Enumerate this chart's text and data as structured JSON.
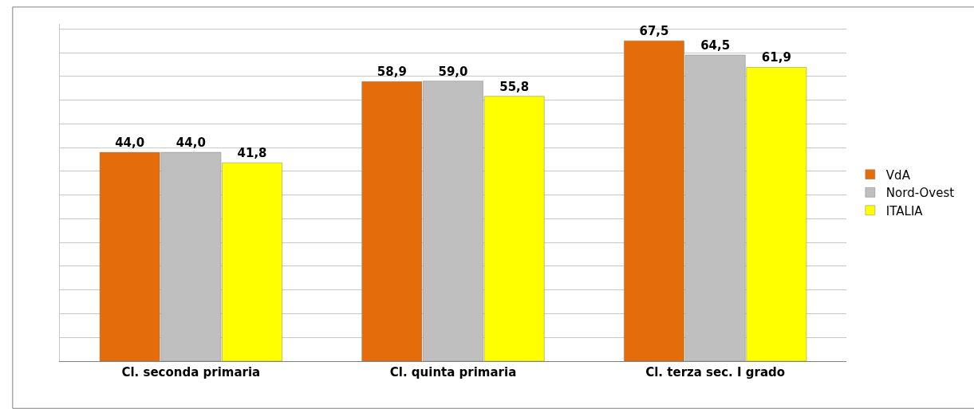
{
  "chart_data": {
    "type": "bar",
    "categories": [
      "Cl. seconda primaria",
      "Cl. quinta primaria",
      "Cl. terza sec. I grado"
    ],
    "series": [
      {
        "name": "VdA",
        "color": "#e46c0a",
        "values": [
          44.0,
          58.9,
          67.5
        ],
        "value_labels": [
          "44,0",
          "58,9",
          "67,5"
        ]
      },
      {
        "name": "Nord-Ovest",
        "color": "#bfbfbf",
        "values": [
          44.0,
          59.0,
          64.5
        ],
        "value_labels": [
          "44,0",
          "59,0",
          "64,5"
        ]
      },
      {
        "name": "ITALIA",
        "color": "#ffff00",
        "values": [
          41.8,
          55.8,
          61.9
        ],
        "value_labels": [
          "41,8",
          "55,8",
          "61,9"
        ]
      }
    ],
    "grid": "y",
    "legend": "right",
    "tick_labels": "x"
  }
}
